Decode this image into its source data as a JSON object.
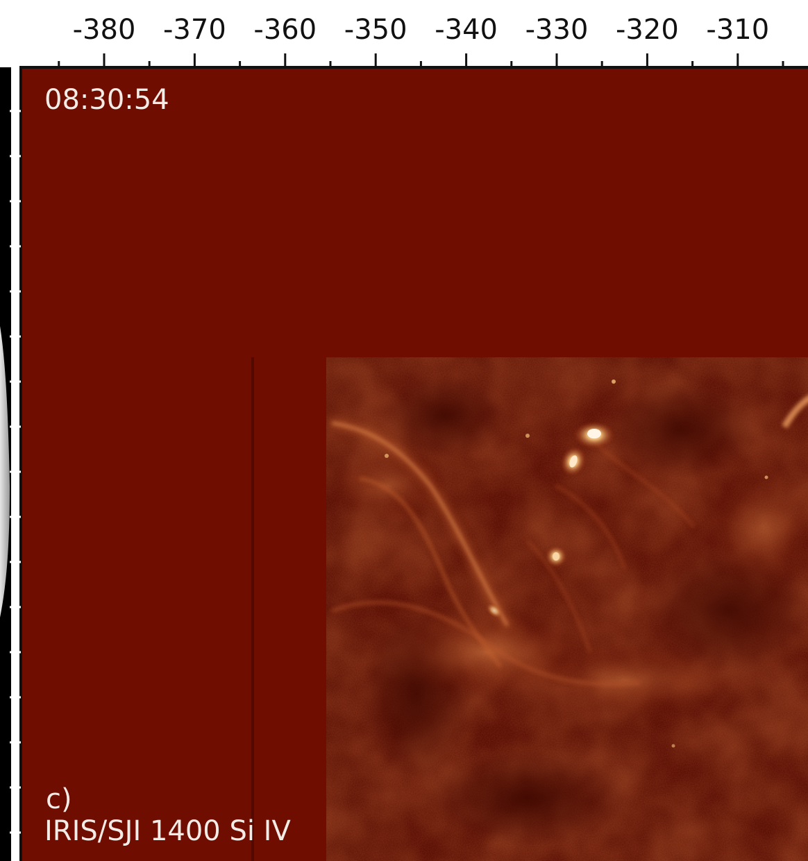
{
  "figure": {
    "panel_label": "c)",
    "instrument_label": "IRIS/SJI 1400 Si IV",
    "timestamp": "08:30:54"
  },
  "x_axis": {
    "major_ticks": [
      -380,
      -370,
      -360,
      -350,
      -340,
      -330,
      -320,
      -310
    ],
    "tick_labels": [
      "-380",
      "-370",
      "-360",
      "-350",
      "-340",
      "-330",
      "-320",
      "-310"
    ],
    "minor_step": 5,
    "unit": ""
  },
  "colors": {
    "background_field": "#6e0d00",
    "observation_dark": "#4a0a00",
    "observation_mid": "#7a1a05",
    "feature_bright": "#f4c27a",
    "feature_core": "#fff4e0",
    "axis": "#111111",
    "left_grayscale_edge": "#cfcfcf",
    "overlay_text": "#f3ece6"
  },
  "bright_features": [
    {
      "kind": "footpoint",
      "description_name": "bright-kernel-main"
    },
    {
      "kind": "footpoint",
      "description_name": "bright-kernel-secondary"
    },
    {
      "kind": "footpoint",
      "description_name": "bright-kernel-lower"
    },
    {
      "kind": "loop",
      "description_name": "arched-loop-left"
    },
    {
      "kind": "loop",
      "description_name": "arched-loop-right-edge"
    }
  ]
}
